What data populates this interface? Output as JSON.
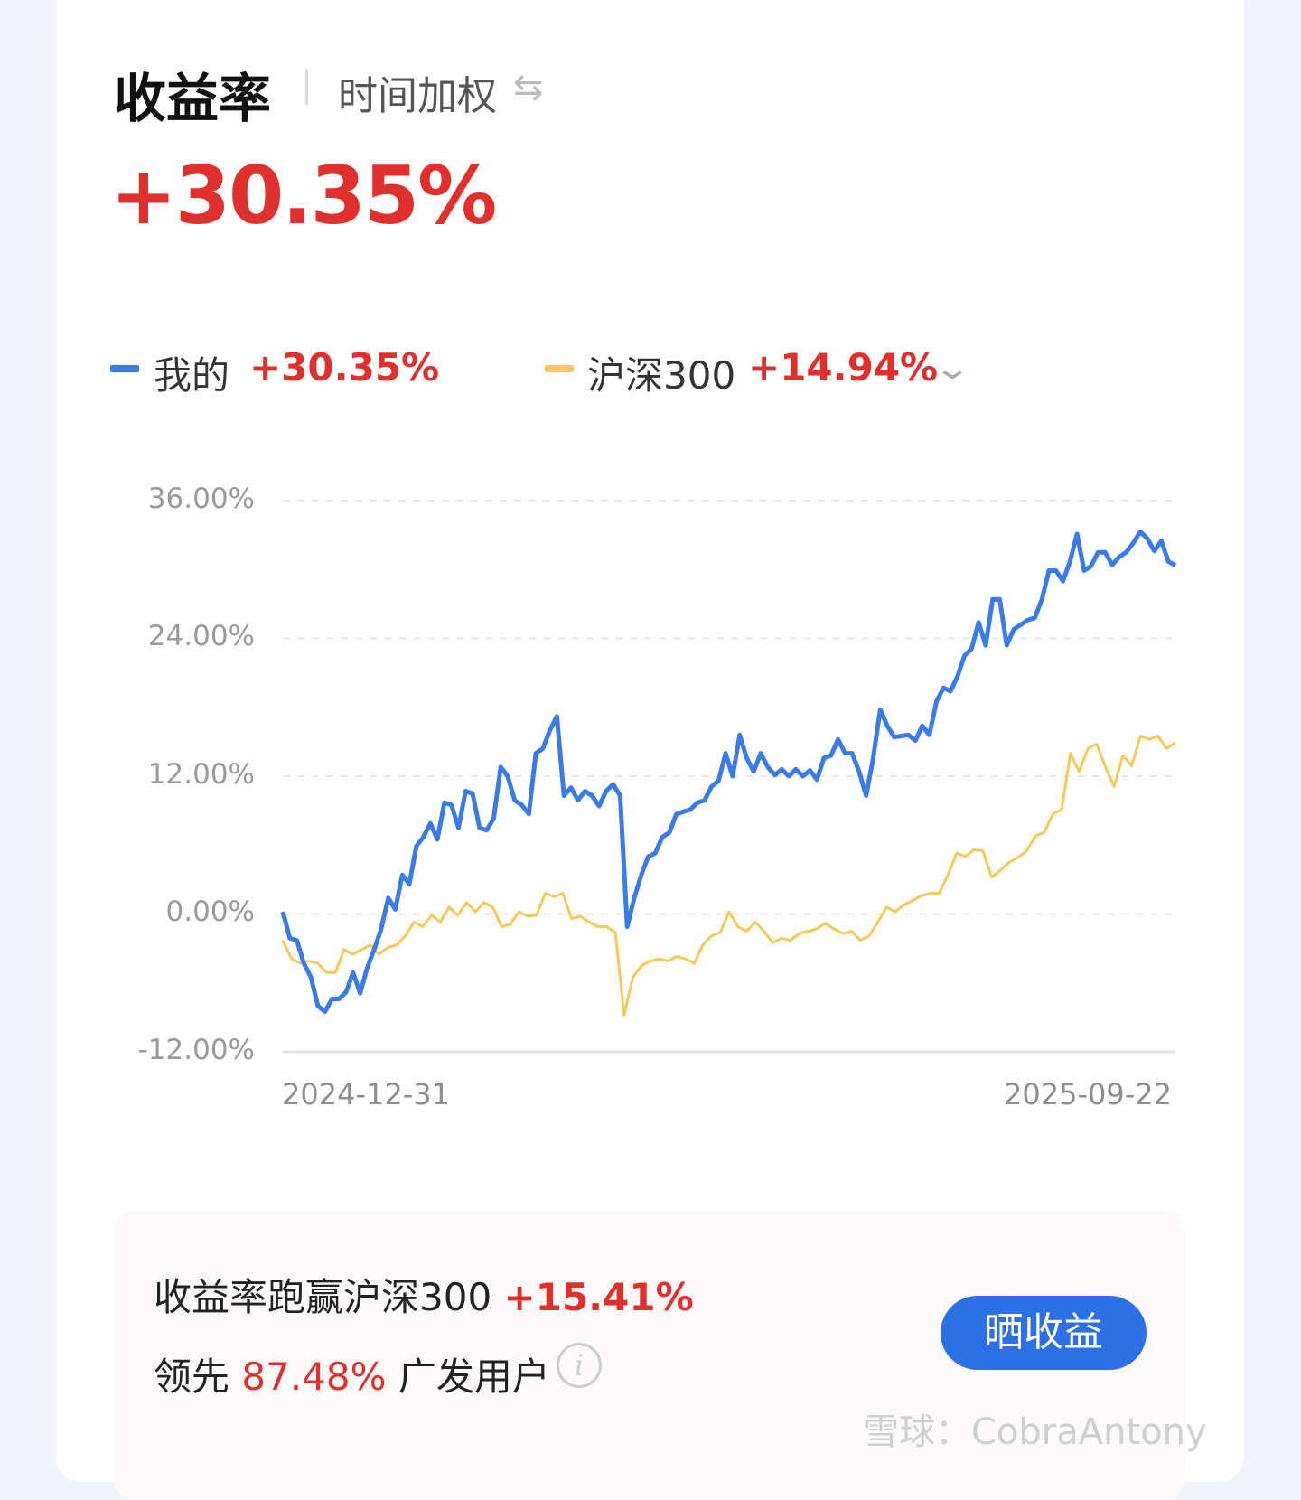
{
  "header": {
    "title": "收益率",
    "mode": "时间加权",
    "swap_icon": "swap-arrows-icon"
  },
  "total_return": "+30.35%",
  "legend": {
    "mine": {
      "label": "我的",
      "value": "+30.35%",
      "color": "#3b7be8"
    },
    "benchmark": {
      "label": "沪深300",
      "value": "+14.94%",
      "color": "#f7c85a"
    },
    "dropdown_icon": "chevron-down-icon"
  },
  "chart_data": {
    "type": "line",
    "x_start": "2024-12-31",
    "x_end": "2025-09-22",
    "ylim": [
      -12,
      36
    ],
    "yticks": [
      "36.00%",
      "24.00%",
      "12.00%",
      "0.00%",
      "-12.00%"
    ],
    "ytick_values": [
      36,
      24,
      12,
      0,
      -12
    ],
    "grid": true,
    "series": [
      {
        "name": "我的",
        "color": "#3b7be8",
        "values": [
          0.2,
          -2.1,
          -2.3,
          -4.3,
          -5.5,
          -8.0,
          -8.5,
          -7.4,
          -7.4,
          -6.8,
          -5.1,
          -6.9,
          -4.7,
          -3.1,
          -1.3,
          1.4,
          0.4,
          3.4,
          2.6,
          5.9,
          6.7,
          7.9,
          6.5,
          9.7,
          9.5,
          7.5,
          10.7,
          10.5,
          7.5,
          7.3,
          8.3,
          12.8,
          12.0,
          9.9,
          9.5,
          8.7,
          14.0,
          14.4,
          16.0,
          17.2,
          10.3,
          11.0,
          9.9,
          10.7,
          10.3,
          9.4,
          10.7,
          11.3,
          10.3,
          -1.1,
          1.4,
          3.4,
          5.0,
          5.3,
          6.7,
          7.1,
          8.7,
          8.9,
          9.1,
          9.7,
          9.9,
          11.1,
          11.6,
          14.0,
          12.0,
          15.6,
          13.6,
          12.4,
          14.0,
          12.8,
          12.1,
          12.6,
          12.0,
          12.6,
          12.0,
          12.5,
          11.7,
          13.6,
          13.8,
          15.2,
          14.0,
          14.0,
          12.4,
          10.3,
          13.6,
          17.8,
          16.4,
          15.4,
          15.5,
          15.6,
          15.1,
          16.4,
          15.6,
          18.5,
          19.7,
          19.4,
          20.7,
          22.5,
          23.1,
          25.4,
          23.4,
          27.4,
          27.4,
          23.4,
          24.8,
          25.2,
          25.6,
          25.8,
          27.4,
          29.9,
          29.9,
          29.0,
          30.7,
          33.1,
          29.9,
          30.3,
          31.5,
          31.5,
          30.4,
          31.1,
          31.5,
          32.3,
          33.3,
          32.7,
          31.6,
          32.5,
          30.7,
          30.35
        ]
      },
      {
        "name": "沪深300",
        "color": "#f7c85a",
        "values": [
          -2.3,
          -3.9,
          -4.3,
          -4.1,
          -4.3,
          -5.1,
          -5.1,
          -3.1,
          -3.5,
          -3.1,
          -2.7,
          -3.5,
          -2.9,
          -2.7,
          -1.9,
          -0.7,
          -1.1,
          -0.1,
          -0.7,
          0.6,
          -0.1,
          1.0,
          0.2,
          1.0,
          0.6,
          -1.1,
          -0.9,
          0.2,
          -0.2,
          -0.1,
          1.8,
          1.5,
          1.8,
          -0.4,
          -0.2,
          -0.7,
          -1.1,
          -1.1,
          -1.6,
          -8.8,
          -5.5,
          -4.5,
          -4.1,
          -3.9,
          -4.1,
          -3.7,
          -3.9,
          -4.3,
          -2.7,
          -1.9,
          -1.6,
          0.2,
          -1.1,
          -1.5,
          -0.7,
          -1.5,
          -2.5,
          -2.1,
          -2.3,
          -1.7,
          -1.5,
          -1.3,
          -0.8,
          -1.3,
          -1.7,
          -1.5,
          -2.3,
          -1.9,
          -0.7,
          0.6,
          0.2,
          0.8,
          1.2,
          1.6,
          1.8,
          1.8,
          3.4,
          5.3,
          5.0,
          5.6,
          5.5,
          3.2,
          3.8,
          4.5,
          4.9,
          5.5,
          6.8,
          7.1,
          8.7,
          9.1,
          14.0,
          12.4,
          14.4,
          14.8,
          12.8,
          11.1,
          13.8,
          12.9,
          15.5,
          15.2,
          15.5,
          14.4,
          14.94
        ]
      }
    ]
  },
  "summary": {
    "beat_label": "收益率跑赢沪深300",
    "beat_value": "+15.41%",
    "lead_prefix": "领先",
    "lead_value": "87.48%",
    "lead_suffix": "广发用户",
    "info_icon": "i",
    "share_button": "晒收益"
  },
  "watermark": "雪球：CobraAntony"
}
